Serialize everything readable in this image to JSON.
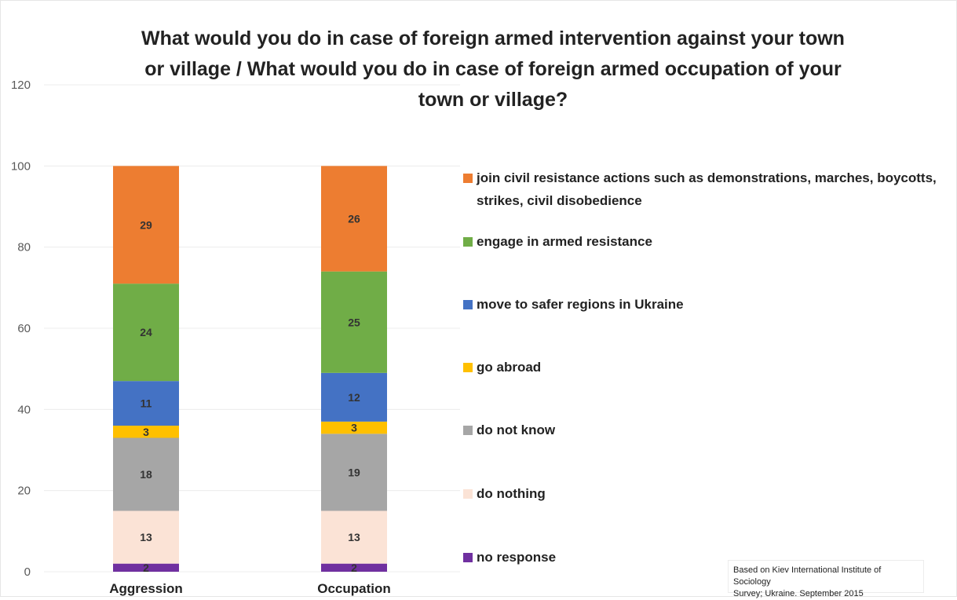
{
  "chart_data": {
    "type": "bar",
    "stacked": true,
    "title_lines": [
      "What would you do in case of foreign armed intervention against your town",
      "or village / What would you do in case of foreign armed occupation of your",
      "town or village?"
    ],
    "xlabel": "",
    "ylabel": "",
    "categories": [
      "Aggression",
      "Occupation"
    ],
    "ylim": [
      0,
      120
    ],
    "yticks": [
      "0",
      "20",
      "40",
      "60",
      "80",
      "100",
      "120"
    ],
    "grid": true,
    "legend_position": "right",
    "series": [
      {
        "name": "no response",
        "color": "#7030a0",
        "values": [
          2,
          2
        ],
        "label_color": "#333333"
      },
      {
        "name": "do nothing",
        "color": "#fbe3d6",
        "values": [
          13,
          13
        ],
        "label_color": "#333333"
      },
      {
        "name": "do not know",
        "color": "#a6a6a6",
        "values": [
          18,
          19
        ],
        "label_color": "#333333"
      },
      {
        "name": "go abroad",
        "color": "#ffc000",
        "values": [
          3,
          3
        ],
        "label_color": "#333333"
      },
      {
        "name": "move to safer regions in Ukraine",
        "color": "#4472c4",
        "values": [
          11,
          12
        ],
        "label_color": "#333333"
      },
      {
        "name": "engage in armed resistance",
        "color": "#70ad47",
        "values": [
          24,
          25
        ],
        "label_color": "#333333"
      },
      {
        "name": "join civil resistance actions such as demonstrations, marches, boycotts, strikes, civil disobedience",
        "color": "#ed7d31",
        "values": [
          29,
          26
        ],
        "label_color": "#333333"
      }
    ],
    "legend_lines": [
      [
        "join civil resistance actions such as demonstrations, marches, boycotts,",
        "strikes, civil disobedience"
      ],
      [
        "engage in armed resistance"
      ],
      [
        "move to safer regions in Ukraine"
      ],
      [
        "go abroad"
      ],
      [
        "do not know"
      ],
      [
        "do nothing"
      ],
      [
        "no response"
      ]
    ]
  },
  "source": {
    "line1": "Based on Kiev International Institute of Sociology",
    "line2": "Survey; Ukraine. September 2015"
  }
}
